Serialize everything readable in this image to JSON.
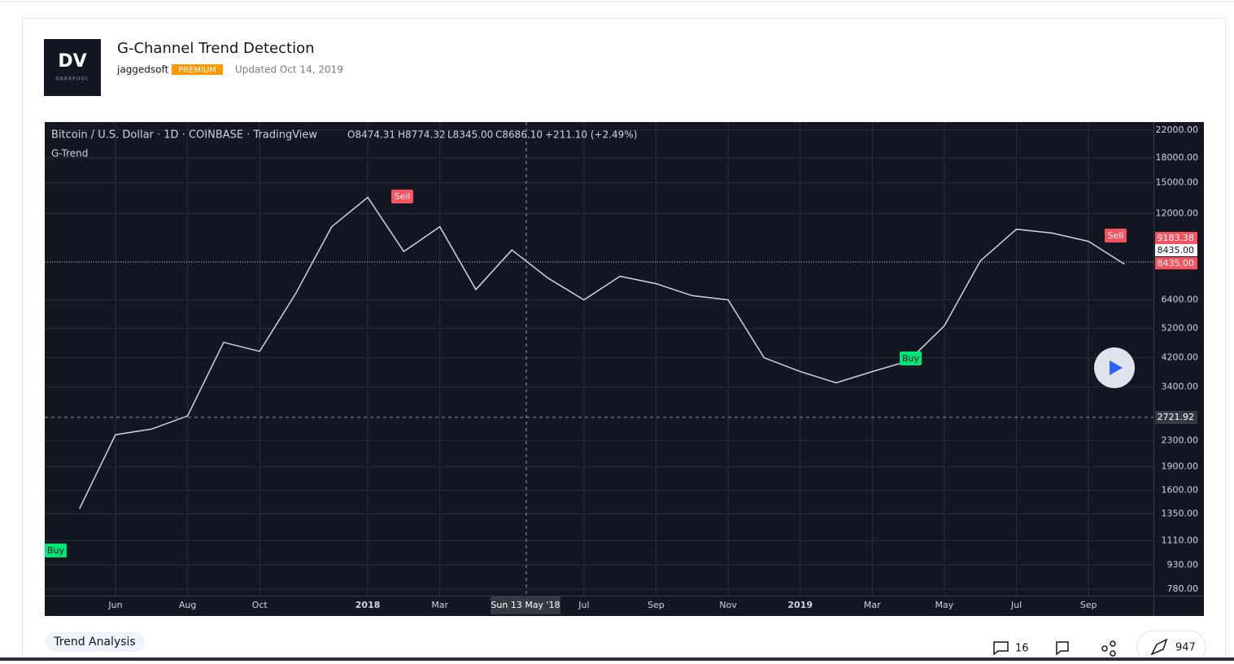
{
  "header": {
    "logo_mark": "DV",
    "logo_text": "DARKPOOL",
    "title": "G-Channel Trend Detection",
    "author": "jaggedsoft",
    "badge": "PREMIUM",
    "updated": "Updated Oct 14, 2019"
  },
  "chart_data": {
    "type": "line",
    "symbol": "Bitcoin / U.S. Dollar · 1D · COINBASE · TradingView",
    "ohlc": [
      "O8474.31",
      "H8774.32",
      "L8345.00",
      "C8686.10",
      "+211.10 (+2.49%)"
    ],
    "indicator": "G-Trend",
    "categories": [
      null,
      "Jun",
      null,
      "Aug",
      null,
      "Oct",
      null,
      null,
      "2018",
      null,
      "Mar",
      null,
      null,
      null,
      "Jul",
      null,
      "Sep",
      null,
      "Nov",
      null,
      "2019",
      null,
      "Mar",
      null,
      "May",
      null,
      "Jul",
      null,
      "Sep",
      null
    ],
    "values": [
      1400,
      2400,
      2500,
      2750,
      4700,
      4400,
      6700,
      10900,
      13500,
      9100,
      10900,
      6900,
      9200,
      7500,
      6400,
      7600,
      7200,
      6600,
      6400,
      4200,
      3800,
      3500,
      3800,
      4100,
      5300,
      8500,
      10700,
      10400,
      9800,
      8300
    ],
    "color": "#d1d4dc",
    "log_scale": true,
    "ylim": [
      744,
      23340
    ],
    "yticks": [
      {
        "value": 22000,
        "label": "22000.00"
      },
      {
        "value": 18000,
        "label": "18000.00"
      },
      {
        "value": 15000,
        "label": "15000.00"
      },
      {
        "value": 12000,
        "label": "12000.00"
      },
      {
        "value": 6400,
        "label": "6400.00"
      },
      {
        "value": 5200,
        "label": "5200.00"
      },
      {
        "value": 4200,
        "label": "4200.00"
      },
      {
        "value": 3400,
        "label": "3400.00"
      },
      {
        "value": 2300,
        "label": "2300.00"
      },
      {
        "value": 1900,
        "label": "1900.00"
      },
      {
        "value": 1600,
        "label": "1600.00"
      },
      {
        "value": 1350,
        "label": "1350.00"
      },
      {
        "value": 1110,
        "label": "1110.00"
      },
      {
        "value": 930,
        "label": "930.00"
      },
      {
        "value": 780,
        "label": "780.00"
      }
    ],
    "grid": true,
    "price_labels": [
      9183.38,
      {
        "value": 8435,
        "label": "8435.00"
      },
      {
        "value": 8435,
        "label": "8435.00"
      }
    ],
    "crosshair": {
      "x_label": "Sun 13 May '18",
      "y_value": 2721.92
    },
    "signals": [
      "Buy",
      "Sell",
      "Buy",
      "Sell"
    ]
  },
  "footer": {
    "tag": "Trend Analysis",
    "comments": "16",
    "boosts": "947"
  }
}
